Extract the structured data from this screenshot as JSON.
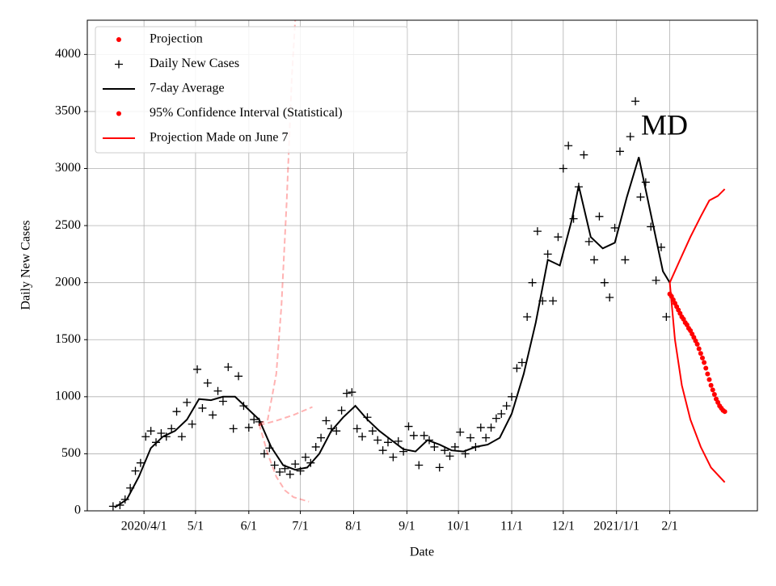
{
  "chart_data": {
    "type": "scatter",
    "xlabel": "Date",
    "ylabel": "Daily New Cases",
    "annotation": "MD",
    "xlim": [
      "2020-02-28",
      "2021-03-24"
    ],
    "ylim": [
      0,
      4300
    ],
    "xticks": [
      {
        "value": "2020-04-01",
        "label": "2020/4/1"
      },
      {
        "value": "2020-05-01",
        "label": "5/1"
      },
      {
        "value": "2020-06-01",
        "label": "6/1"
      },
      {
        "value": "2020-07-01",
        "label": "7/1"
      },
      {
        "value": "2020-08-01",
        "label": "8/1"
      },
      {
        "value": "2020-09-01",
        "label": "9/1"
      },
      {
        "value": "2020-10-01",
        "label": "10/1"
      },
      {
        "value": "2020-11-01",
        "label": "11/1"
      },
      {
        "value": "2020-12-01",
        "label": "12/1"
      },
      {
        "value": "2021-01-01",
        "label": "2021/1/1"
      },
      {
        "value": "2021-02-01",
        "label": "2/1"
      }
    ],
    "yticks": [
      0,
      500,
      1000,
      1500,
      2000,
      2500,
      3000,
      3500,
      4000
    ],
    "grid": true,
    "legend": "upper left",
    "series": [
      {
        "name": "Projection",
        "color": "#ff0000",
        "marker": "dot",
        "x": [
          "2021-02-01",
          "2021-02-02",
          "2021-02-03",
          "2021-02-04",
          "2021-02-05",
          "2021-02-06",
          "2021-02-07",
          "2021-02-08",
          "2021-02-09",
          "2021-02-10",
          "2021-02-11",
          "2021-02-12",
          "2021-02-13",
          "2021-02-14",
          "2021-02-15",
          "2021-02-16",
          "2021-02-17",
          "2021-02-18",
          "2021-02-19",
          "2021-02-20",
          "2021-02-21",
          "2021-02-22",
          "2021-02-23",
          "2021-02-24",
          "2021-02-25",
          "2021-02-26",
          "2021-02-27",
          "2021-02-28",
          "2021-03-01",
          "2021-03-02",
          "2021-03-03",
          "2021-03-04",
          "2021-03-05"
        ],
        "values": [
          1900,
          1880,
          1850,
          1820,
          1790,
          1760,
          1730,
          1700,
          1680,
          1650,
          1630,
          1600,
          1580,
          1550,
          1520,
          1490,
          1460,
          1420,
          1380,
          1340,
          1300,
          1250,
          1200,
          1150,
          1100,
          1060,
          1020,
          980,
          950,
          920,
          900,
          880,
          870
        ]
      },
      {
        "name": "Daily New Cases",
        "color": "#000000",
        "marker": "plus",
        "x": [
          "2020-03-14",
          "2020-03-18",
          "2020-03-21",
          "2020-03-24",
          "2020-03-27",
          "2020-03-30",
          "2020-04-02",
          "2020-04-05",
          "2020-04-08",
          "2020-04-11",
          "2020-04-14",
          "2020-04-17",
          "2020-04-20",
          "2020-04-23",
          "2020-04-26",
          "2020-04-29",
          "2020-05-02",
          "2020-05-05",
          "2020-05-08",
          "2020-05-11",
          "2020-05-14",
          "2020-05-17",
          "2020-05-20",
          "2020-05-23",
          "2020-05-26",
          "2020-05-29",
          "2020-06-01",
          "2020-06-04",
          "2020-06-07",
          "2020-06-10",
          "2020-06-13",
          "2020-06-16",
          "2020-06-19",
          "2020-06-22",
          "2020-06-25",
          "2020-06-28",
          "2020-07-01",
          "2020-07-04",
          "2020-07-07",
          "2020-07-10",
          "2020-07-13",
          "2020-07-16",
          "2020-07-19",
          "2020-07-22",
          "2020-07-25",
          "2020-07-28",
          "2020-07-31",
          "2020-08-03",
          "2020-08-06",
          "2020-08-09",
          "2020-08-12",
          "2020-08-15",
          "2020-08-18",
          "2020-08-21",
          "2020-08-24",
          "2020-08-27",
          "2020-08-30",
          "2020-09-02",
          "2020-09-05",
          "2020-09-08",
          "2020-09-11",
          "2020-09-14",
          "2020-09-17",
          "2020-09-20",
          "2020-09-23",
          "2020-09-26",
          "2020-09-29",
          "2020-10-02",
          "2020-10-05",
          "2020-10-08",
          "2020-10-11",
          "2020-10-14",
          "2020-10-17",
          "2020-10-20",
          "2020-10-23",
          "2020-10-26",
          "2020-10-29",
          "2020-11-01",
          "2020-11-04",
          "2020-11-07",
          "2020-11-10",
          "2020-11-13",
          "2020-11-16",
          "2020-11-19",
          "2020-11-22",
          "2020-11-25",
          "2020-11-28",
          "2020-12-01",
          "2020-12-04",
          "2020-12-07",
          "2020-12-10",
          "2020-12-13",
          "2020-12-16",
          "2020-12-19",
          "2020-12-22",
          "2020-12-25",
          "2020-12-28",
          "2020-12-31",
          "2021-01-03",
          "2021-01-06",
          "2021-01-09",
          "2021-01-12",
          "2021-01-15",
          "2021-01-18",
          "2021-01-21",
          "2021-01-24",
          "2021-01-27",
          "2021-01-30"
        ],
        "values": [
          40,
          50,
          100,
          200,
          350,
          420,
          650,
          700,
          600,
          680,
          650,
          720,
          870,
          650,
          950,
          760,
          1240,
          900,
          1120,
          840,
          1050,
          960,
          1260,
          720,
          1180,
          920,
          730,
          800,
          780,
          500,
          550,
          400,
          340,
          370,
          320,
          410,
          350,
          470,
          420,
          560,
          640,
          790,
          720,
          700,
          880,
          1030,
          1040,
          720,
          650,
          820,
          700,
          620,
          530,
          600,
          470,
          610,
          520,
          740,
          660,
          400,
          660,
          620,
          560,
          380,
          530,
          480,
          560,
          690,
          500,
          640,
          560,
          730,
          640,
          730,
          810,
          850,
          920,
          1000,
          1250,
          1300,
          1700,
          2000,
          2450,
          1840,
          2250,
          1840,
          2400,
          3000,
          3200,
          2560,
          2840,
          3120,
          2360,
          2200,
          2580,
          2000,
          1870,
          2480,
          3150,
          2200,
          3280,
          3590,
          2750,
          2880,
          2490,
          2020,
          2310,
          1700
        ]
      },
      {
        "name": "7-day Average",
        "color": "#000000",
        "marker": "line",
        "x": [
          "2020-03-15",
          "2020-03-22",
          "2020-03-29",
          "2020-04-05",
          "2020-04-12",
          "2020-04-19",
          "2020-04-26",
          "2020-05-03",
          "2020-05-10",
          "2020-05-17",
          "2020-05-24",
          "2020-05-31",
          "2020-06-07",
          "2020-06-14",
          "2020-06-21",
          "2020-06-28",
          "2020-07-05",
          "2020-07-12",
          "2020-07-19",
          "2020-07-26",
          "2020-08-02",
          "2020-08-09",
          "2020-08-16",
          "2020-08-23",
          "2020-08-30",
          "2020-09-06",
          "2020-09-13",
          "2020-09-20",
          "2020-09-27",
          "2020-10-04",
          "2020-10-11",
          "2020-10-18",
          "2020-10-25",
          "2020-11-01",
          "2020-11-08",
          "2020-11-15",
          "2020-11-22",
          "2020-11-29",
          "2020-12-06",
          "2020-12-10",
          "2020-12-17",
          "2020-12-24",
          "2020-12-31",
          "2021-01-07",
          "2021-01-14",
          "2021-01-21",
          "2021-01-28",
          "2021-02-01"
        ],
        "values": [
          30,
          100,
          300,
          550,
          650,
          700,
          800,
          980,
          970,
          1000,
          1000,
          900,
          800,
          560,
          400,
          360,
          380,
          500,
          700,
          820,
          920,
          800,
          700,
          620,
          540,
          520,
          620,
          580,
          530,
          520,
          560,
          580,
          640,
          850,
          1200,
          1650,
          2200,
          2150,
          2550,
          2850,
          2400,
          2300,
          2350,
          2750,
          3100,
          2600,
          2100,
          2000
        ]
      },
      {
        "name": "95% Confidence Interval (Statistical)",
        "color": "#ff0000",
        "marker": "dot",
        "lines": [
          {
            "x": [
              "2021-02-01",
              "2021-02-07",
              "2021-02-13",
              "2021-02-19",
              "2021-02-24",
              "2021-03-01",
              "2021-03-05"
            ],
            "values": [
              2000,
              2200,
              2400,
              2580,
              2720,
              2760,
              2820
            ]
          },
          {
            "x": [
              "2021-02-01",
              "2021-02-04",
              "2021-02-08",
              "2021-02-13",
              "2021-02-19",
              "2021-02-25",
              "2021-03-05"
            ],
            "values": [
              2000,
              1500,
              1100,
              800,
              560,
              380,
              250
            ]
          }
        ]
      },
      {
        "name": "Projection Made on June 7",
        "color": "#ff0000",
        "marker": "line",
        "dashed": true,
        "opacity": 0.3,
        "lines": [
          {
            "x": [
              "2020-06-07",
              "2020-06-12",
              "2020-06-17",
              "2020-06-20",
              "2020-06-23",
              "2020-06-26",
              "2020-06-28"
            ],
            "values": [
              760,
              800,
              1200,
              1800,
              2700,
              3800,
              4300
            ]
          },
          {
            "x": [
              "2020-06-07",
              "2020-06-12",
              "2020-06-17",
              "2020-06-22",
              "2020-06-27",
              "2020-07-06"
            ],
            "values": [
              760,
              500,
              300,
              180,
              120,
              80
            ]
          },
          {
            "x": [
              "2020-06-07",
              "2020-06-17",
              "2020-06-27",
              "2020-07-08"
            ],
            "values": [
              750,
              790,
              840,
              910
            ]
          }
        ]
      }
    ]
  }
}
